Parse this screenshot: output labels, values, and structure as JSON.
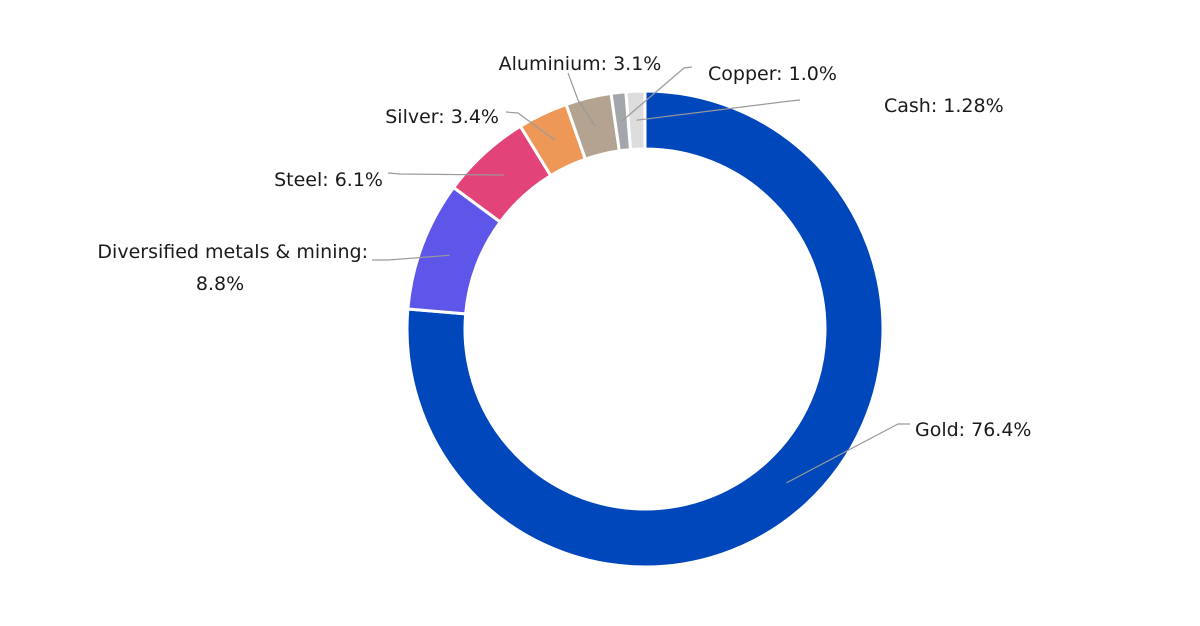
{
  "chart_data": {
    "type": "pie",
    "variant": "donut",
    "title": "",
    "unit": "%",
    "slices": [
      {
        "label": "Gold",
        "value": 76.4,
        "display": "Gold: 76.4%",
        "color": "#0047BB"
      },
      {
        "label": "Diversified metals & mining",
        "value": 8.8,
        "display_lines": [
          "Diversified metals & mining:",
          "8.8%"
        ],
        "color": "#5E56E8"
      },
      {
        "label": "Steel",
        "value": 6.1,
        "display": "Steel: 6.1%",
        "color": "#E2447A"
      },
      {
        "label": "Silver",
        "value": 3.4,
        "display": "Silver: 3.4%",
        "color": "#EE9858"
      },
      {
        "label": "Aluminium",
        "value": 3.1,
        "display": "Aluminium: 3.1%",
        "color": "#B3A390"
      },
      {
        "label": "Copper",
        "value": 1.0,
        "display": "Copper: 1.0%",
        "color": "#A2A7AB"
      },
      {
        "label": "Cash",
        "value": 1.28,
        "display": "Cash: 1.28%",
        "color": "#DDDDDD"
      }
    ],
    "start_angle": "12 o'clock",
    "direction": "clockwise",
    "legend": "none",
    "labels": "outside with leader lines"
  }
}
